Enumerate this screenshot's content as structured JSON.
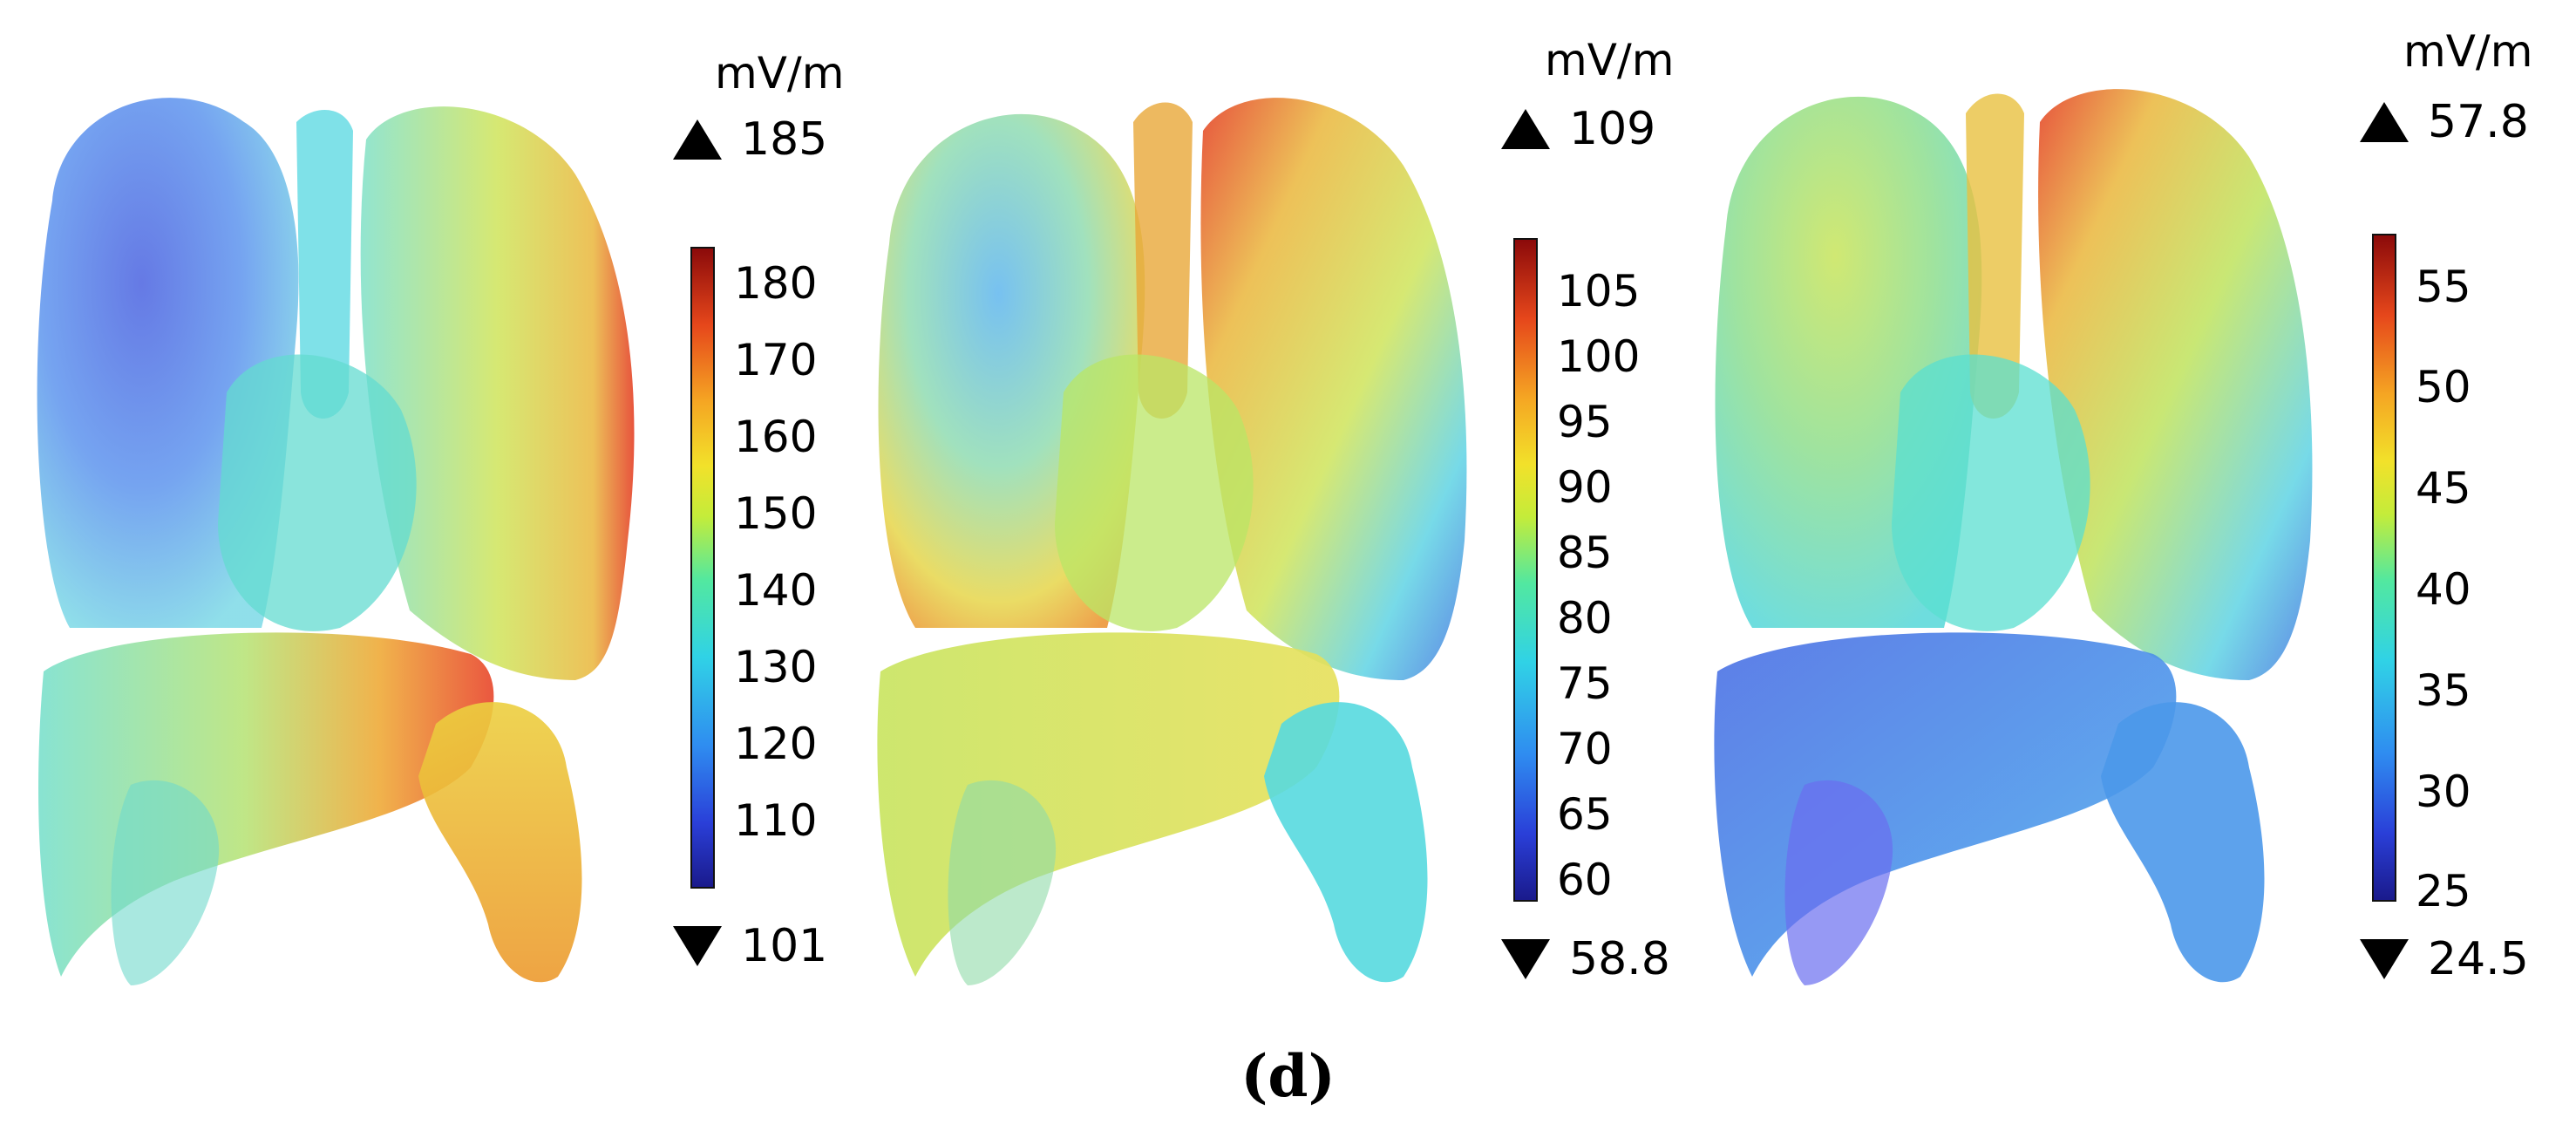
{
  "figure": {
    "caption": "(d)",
    "panels": [
      {
        "unit": "mV/m",
        "max": "185",
        "min": "101",
        "ticks": [
          "180",
          "170",
          "160",
          "150",
          "140",
          "130",
          "120",
          "110"
        ],
        "colors": {
          "left_lung": "#5a7fe6",
          "right_lung": "#d9d84a",
          "right_edge": "#e3361b",
          "liver": "#73ddc7",
          "liver_hot": "#e8452a",
          "stomach": "#e9a637",
          "heart": "#63dbd0"
        }
      },
      {
        "unit": "mV/m",
        "max": "109",
        "min": "58.8",
        "ticks": [
          "105",
          "100",
          "95",
          "90",
          "85",
          "80",
          "75",
          "70",
          "65",
          "60"
        ],
        "colors": {
          "left_lung": "#86d6b9",
          "right_lung": "#b6e66a",
          "right_edge": "#e3361b",
          "liver": "#d0e45a",
          "liver_hot": "#e3e25a",
          "stomach": "#57d9df",
          "heart": "#b9e566"
        }
      },
      {
        "unit": "mV/m",
        "max": "57.8",
        "min": "24.5",
        "ticks": [
          "55",
          "50",
          "45",
          "40",
          "35",
          "30",
          "25"
        ],
        "colors": {
          "left_lung": "#8fde8c",
          "right_lung": "#bfe35c",
          "right_edge": "#e3361b",
          "liver": "#4d86e8",
          "liver_hot": "#6a6ef0",
          "stomach": "#4b98ea",
          "heart": "#5adfd0"
        }
      }
    ]
  }
}
